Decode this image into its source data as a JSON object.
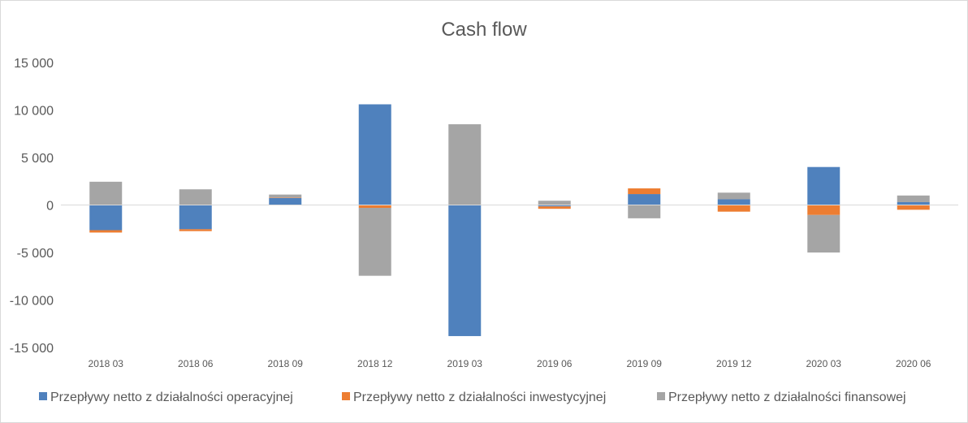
{
  "chart_data": {
    "type": "bar",
    "stacked": true,
    "title": "Cash flow",
    "categories": [
      "2018 03",
      "2018 06",
      "2018 09",
      "2018 12",
      "2019 03",
      "2019 06",
      "2019 09",
      "2019 12",
      "2020 03",
      "2020 06"
    ],
    "ylim": [
      -15000,
      15000
    ],
    "yticks": [
      15000,
      10000,
      5000,
      0,
      -5000,
      -10000,
      -15000
    ],
    "ytick_labels": [
      "15 000",
      "10 000",
      "5 000",
      "0",
      "-5 000",
      "-10 000",
      "-15 000"
    ],
    "grid": false,
    "legend_position": "bottom",
    "series": [
      {
        "name": "Przepływy netto z działalności operacyjnej",
        "color": "#4f81bd",
        "values": [
          -2650,
          -2550,
          750,
          10600,
          -13800,
          -150,
          1150,
          600,
          4000,
          300
        ]
      },
      {
        "name": "Przepływy netto z działalności inwestycyjnej",
        "color": "#ed7d31",
        "values": [
          -250,
          -200,
          50,
          -300,
          0,
          -250,
          600,
          -700,
          -1050,
          -500
        ]
      },
      {
        "name": "Przepływy netto z działalności finansowej",
        "color": "#a5a5a5",
        "values": [
          2450,
          1650,
          300,
          -7150,
          8500,
          450,
          -1400,
          700,
          -3950,
          700
        ]
      }
    ]
  }
}
